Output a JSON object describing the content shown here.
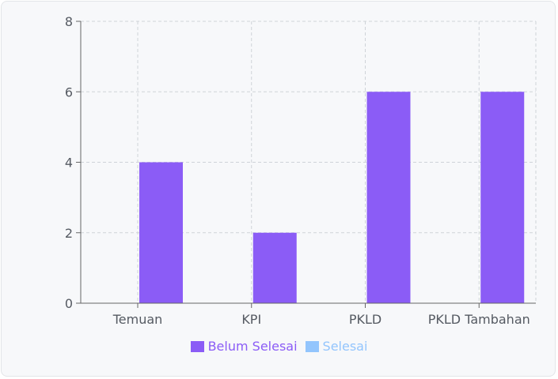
{
  "chart_data": {
    "type": "bar",
    "categories": [
      "Temuan",
      "KPI",
      "PKLD",
      "PKLD Tambahan"
    ],
    "series": [
      {
        "name": "Belum Selesai",
        "values": [
          4,
          2,
          6,
          6
        ],
        "color": "#8b5cf6"
      },
      {
        "name": "Selesai",
        "values": [
          0,
          0,
          0,
          0
        ],
        "color": "#93c5fd"
      }
    ],
    "ylim": [
      0,
      8
    ],
    "yticks": [
      0,
      2,
      4,
      6,
      8
    ],
    "grid": true,
    "legend_position": "bottom"
  }
}
